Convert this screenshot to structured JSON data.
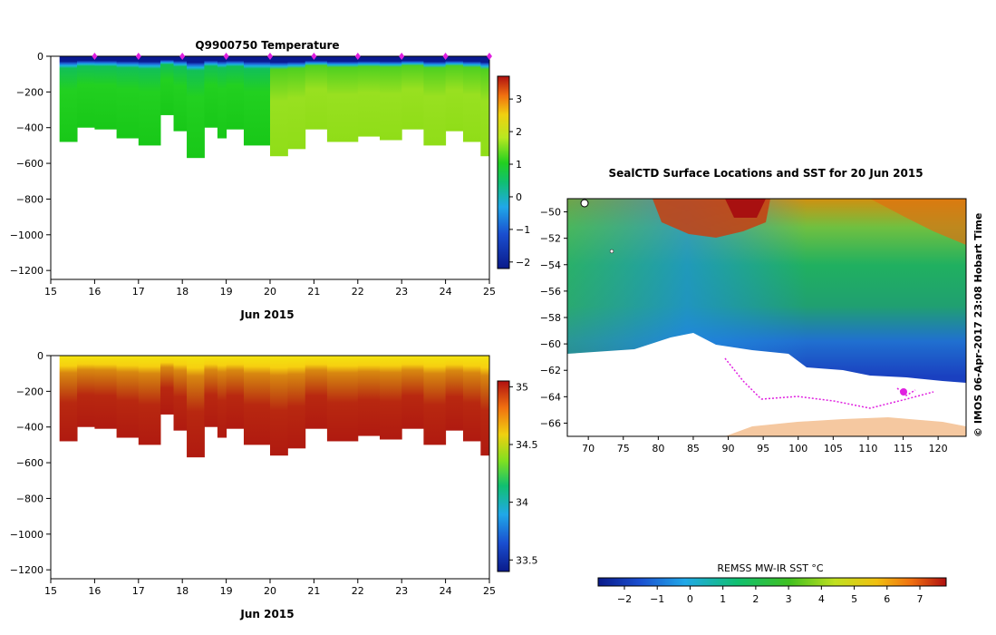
{
  "chart_data": [
    {
      "type": "heatmap",
      "title": "Q9900750  Temperature",
      "xlabel": "Jun 2015",
      "ylabel": "",
      "xlim": [
        15,
        25
      ],
      "ylim": [
        -1250,
        0
      ],
      "x_ticks": [
        15,
        16,
        17,
        18,
        19,
        20,
        21,
        22,
        23,
        24,
        25
      ],
      "y_ticks": [
        0,
        -200,
        -400,
        -600,
        -800,
        -1000,
        -1200
      ],
      "colorbar": {
        "min": -2.2,
        "max": 3.7,
        "ticks": [
          3,
          2,
          1,
          0,
          -1,
          -2
        ]
      },
      "profile_markers": [
        16,
        17,
        18,
        19,
        20,
        21,
        22,
        23,
        24,
        25
      ],
      "profiles": [
        {
          "x": 15.2,
          "depth": -480
        },
        {
          "x": 15.6,
          "depth": -400
        },
        {
          "x": 16.0,
          "depth": -410
        },
        {
          "x": 16.5,
          "depth": -460
        },
        {
          "x": 17.0,
          "depth": -500
        },
        {
          "x": 17.5,
          "depth": -330
        },
        {
          "x": 17.8,
          "depth": -420
        },
        {
          "x": 18.1,
          "depth": -570
        },
        {
          "x": 18.5,
          "depth": -400
        },
        {
          "x": 18.8,
          "depth": -460
        },
        {
          "x": 19.0,
          "depth": -410
        },
        {
          "x": 19.4,
          "depth": -500
        },
        {
          "x": 20.0,
          "depth": -560
        },
        {
          "x": 20.4,
          "depth": -520
        },
        {
          "x": 20.8,
          "depth": -410
        },
        {
          "x": 21.3,
          "depth": -480
        },
        {
          "x": 22.0,
          "depth": -450
        },
        {
          "x": 22.5,
          "depth": -470
        },
        {
          "x": 23.0,
          "depth": -410
        },
        {
          "x": 23.5,
          "depth": -500
        },
        {
          "x": 24.0,
          "depth": -420
        },
        {
          "x": 24.4,
          "depth": -480
        },
        {
          "x": 24.8,
          "depth": -560
        }
      ]
    },
    {
      "type": "heatmap",
      "title": "",
      "xlabel": "Jun 2015",
      "ylabel": "",
      "xlim": [
        15,
        25
      ],
      "ylim": [
        -1250,
        0
      ],
      "x_ticks": [
        15,
        16,
        17,
        18,
        19,
        20,
        21,
        22,
        23,
        24,
        25
      ],
      "y_ticks": [
        0,
        -200,
        -400,
        -600,
        -800,
        -1000,
        -1200
      ],
      "colorbar": {
        "min": 33.4,
        "max": 35.05,
        "ticks": [
          35,
          34.5,
          34,
          33.5
        ]
      }
    },
    {
      "type": "heatmap",
      "title": "SealCTD Surface Locations and SST for 20 Jun 2015",
      "xlim": [
        67,
        124
      ],
      "ylim": [
        -67,
        -49
      ],
      "x_ticks": [
        70,
        75,
        80,
        85,
        90,
        95,
        100,
        105,
        110,
        115,
        120
      ],
      "y_ticks": [
        -50,
        -52,
        -54,
        -56,
        -58,
        -60,
        -62,
        -64,
        -66
      ],
      "side_label": "© IMOS 06-Apr-2017 23:08 Hobart Time",
      "colorbar": {
        "label": "REMSS MW-IR SST °C",
        "min": -2.8,
        "max": 7.8,
        "ticks": [
          -2,
          -1,
          0,
          1,
          2,
          3,
          4,
          5,
          6,
          7
        ]
      }
    }
  ]
}
